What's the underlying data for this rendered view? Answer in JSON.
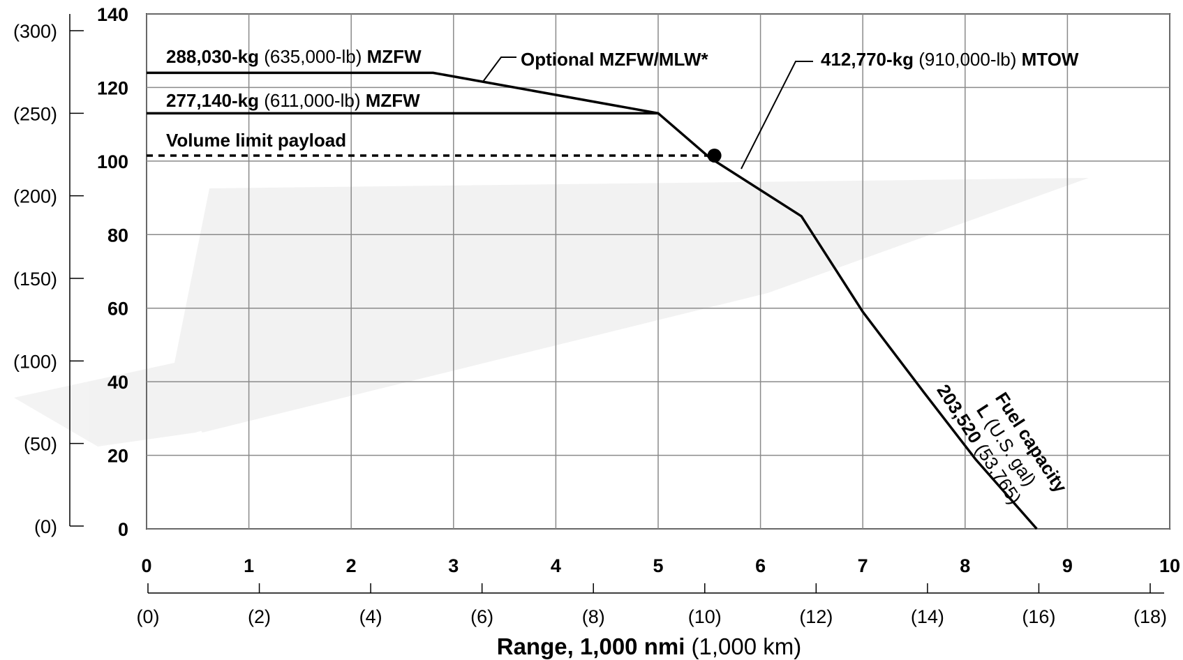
{
  "chart_data": {
    "type": "line",
    "xlabel": {
      "bold": "Range, 1,000 nmi",
      "normal": " (1,000 km)"
    },
    "xlim": [
      0,
      10
    ],
    "ylim": [
      0,
      140
    ],
    "x_ticks_primary": [
      "0",
      "1",
      "2",
      "3",
      "4",
      "5",
      "6",
      "7",
      "8",
      "9",
      "10"
    ],
    "x_ticks_secondary": [
      "(0)",
      "(2)",
      "(4)",
      "(6)",
      "(8)",
      "(10)",
      "(12)",
      "(14)",
      "(16)",
      "(18)"
    ],
    "x_ticks_secondary_values_km": [
      0,
      2,
      4,
      6,
      8,
      10,
      12,
      14,
      16,
      18
    ],
    "y_ticks_primary": [
      "0",
      "20",
      "40",
      "60",
      "80",
      "100",
      "120",
      "140"
    ],
    "y_ticks_primary_values": [
      0,
      20,
      40,
      60,
      80,
      100,
      120,
      140
    ],
    "y_ticks_secondary": [
      "(0)",
      "(50)",
      "(100)",
      "(150)",
      "(200)",
      "(250)",
      "(300)"
    ],
    "y_ticks_secondary_values": [
      0,
      50,
      100,
      150,
      200,
      250,
      300
    ],
    "grid": true,
    "series": [
      {
        "style": "solid",
        "x": [
          0,
          2.8,
          5.0,
          5.5,
          6.4,
          7.0,
          7.6,
          8.1,
          8.7
        ],
        "y": [
          124,
          124,
          113,
          101,
          85,
          59,
          37,
          19,
          0
        ]
      },
      {
        "style": "solid",
        "x": [
          0,
          5.0
        ],
        "y": [
          113,
          113
        ]
      },
      {
        "style": "dashed",
        "x": [
          0,
          5.55
        ],
        "y": [
          101.5,
          101.5
        ]
      }
    ],
    "marker": {
      "x": 5.55,
      "y": 101.5
    },
    "annotations": {
      "mzfw1": {
        "bold1": "288,030-kg",
        "normal": " (635,000-lb) ",
        "bold2": "MZFW"
      },
      "mzfw2": {
        "bold1": "277,140-kg",
        "normal": " (611,000-lb) ",
        "bold2": "MZFW"
      },
      "volume": "Volume limit payload",
      "optional": "Optional MZFW/MLW*",
      "mtow": {
        "bold1": "412,770-kg",
        "normal": " (910,000-lb) ",
        "bold2": "MTOW"
      },
      "fuel": {
        "line1": "Fuel capacity",
        "line2a": "L",
        "line2b": " (U.S. gal)",
        "line3a": "203,520",
        "line3b": " (53,765)"
      }
    }
  }
}
